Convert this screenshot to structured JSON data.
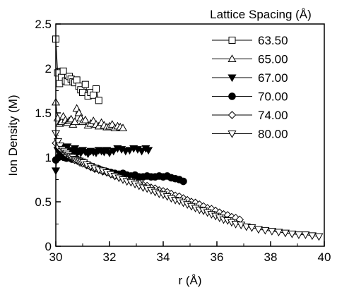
{
  "chart_data": {
    "type": "scatter",
    "xlabel": "r (Å)",
    "ylabel": "Ion Density (M)",
    "xlim": [
      30,
      40
    ],
    "ylim": [
      0,
      2.5
    ],
    "x_ticks": [
      "30",
      "32",
      "34",
      "36",
      "38",
      "40"
    ],
    "y_ticks": [
      "0",
      "0.5",
      "1",
      "1.5",
      "2",
      "2.5"
    ],
    "legend_title": "Lattice Spacing (Å)",
    "legend_position": "top-right",
    "grid": false,
    "series": [
      {
        "name": "63.50",
        "marker": "square",
        "filled": false,
        "line": true,
        "x": [
          30.0,
          30.07,
          30.14,
          30.21,
          30.28,
          30.36,
          30.43,
          30.5,
          30.57,
          30.64,
          30.71,
          30.78,
          30.86,
          30.93,
          31.0,
          31.1,
          31.2,
          31.3,
          31.4,
          31.5,
          31.6
        ],
        "y": [
          2.33,
          1.95,
          1.83,
          1.9,
          1.97,
          1.86,
          1.85,
          1.91,
          1.88,
          1.85,
          1.84,
          1.87,
          1.8,
          1.76,
          1.73,
          1.82,
          1.69,
          1.73,
          1.7,
          1.77,
          1.64
        ]
      },
      {
        "name": "65.00",
        "marker": "triangle-up",
        "filled": false,
        "line": true,
        "x": [
          30.0,
          30.07,
          30.14,
          30.21,
          30.28,
          30.36,
          30.43,
          30.5,
          30.57,
          30.64,
          30.71,
          30.78,
          30.86,
          30.93,
          31.0,
          31.1,
          31.2,
          31.3,
          31.4,
          31.5,
          31.6,
          31.7,
          31.8,
          31.9,
          32.0,
          32.1,
          32.2,
          32.3,
          32.4,
          32.5
        ],
        "y": [
          1.62,
          1.44,
          1.38,
          1.4,
          1.46,
          1.42,
          1.39,
          1.41,
          1.43,
          1.37,
          1.4,
          1.55,
          1.5,
          1.44,
          1.4,
          1.42,
          1.36,
          1.38,
          1.41,
          1.37,
          1.35,
          1.39,
          1.36,
          1.34,
          1.35,
          1.37,
          1.33,
          1.35,
          1.34,
          1.33
        ]
      },
      {
        "name": "67.00",
        "marker": "triangle-down",
        "filled": true,
        "line": true,
        "x": [
          30.0,
          30.07,
          30.14,
          30.21,
          30.28,
          30.36,
          30.43,
          30.5,
          30.57,
          30.64,
          30.71,
          30.78,
          30.86,
          30.93,
          31.0,
          31.1,
          31.2,
          31.3,
          31.4,
          31.5,
          31.6,
          31.7,
          31.8,
          31.9,
          32.0,
          32.15,
          32.3,
          32.45,
          32.6,
          32.75,
          32.9,
          33.05,
          33.2,
          33.35,
          33.45
        ],
        "y": [
          0.85,
          1.08,
          1.09,
          1.06,
          1.11,
          1.07,
          1.12,
          1.05,
          1.08,
          1.06,
          1.1,
          1.04,
          1.07,
          1.05,
          1.08,
          1.06,
          1.04,
          1.07,
          1.06,
          1.05,
          1.08,
          1.07,
          1.06,
          1.08,
          1.05,
          1.07,
          1.1,
          1.09,
          1.07,
          1.08,
          1.1,
          1.09,
          1.07,
          1.1,
          1.08
        ]
      },
      {
        "name": "70.00",
        "marker": "circle",
        "filled": true,
        "line": true,
        "x": [
          30.0,
          30.1,
          30.2,
          30.3,
          30.4,
          30.5,
          30.6,
          30.7,
          30.8,
          30.9,
          31.0,
          31.15,
          31.3,
          31.45,
          31.6,
          31.75,
          31.9,
          32.05,
          32.2,
          32.35,
          32.5,
          32.65,
          32.8,
          32.95,
          33.1,
          33.25,
          33.4,
          33.55,
          33.7,
          33.85,
          34.0,
          34.15,
          34.3,
          34.45,
          34.6,
          34.75
        ],
        "y": [
          0.97,
          1.0,
          1.02,
          1.0,
          0.99,
          1.01,
          0.98,
          0.99,
          0.97,
          0.96,
          0.94,
          0.92,
          0.9,
          0.88,
          0.87,
          0.85,
          0.84,
          0.83,
          0.82,
          0.81,
          0.82,
          0.8,
          0.79,
          0.8,
          0.78,
          0.78,
          0.79,
          0.78,
          0.78,
          0.79,
          0.78,
          0.79,
          0.77,
          0.76,
          0.75,
          0.73
        ]
      },
      {
        "name": "74.00",
        "marker": "diamond",
        "filled": false,
        "line": true,
        "x": [
          30.0,
          30.1,
          30.2,
          30.3,
          30.4,
          30.5,
          30.6,
          30.7,
          30.8,
          30.9,
          31.0,
          31.15,
          31.3,
          31.45,
          31.6,
          31.75,
          31.9,
          32.05,
          32.2,
          32.35,
          32.5,
          32.65,
          32.8,
          32.95,
          33.1,
          33.25,
          33.4,
          33.55,
          33.7,
          33.85,
          34.0,
          34.15,
          34.3,
          34.45,
          34.6,
          34.75,
          34.9,
          35.05,
          35.2,
          35.35,
          35.5,
          35.65,
          35.8,
          35.95,
          36.1,
          36.25,
          36.4,
          36.55,
          36.7,
          36.85
        ],
        "y": [
          1.16,
          1.12,
          1.09,
          1.06,
          1.03,
          1.01,
          0.99,
          0.97,
          0.96,
          0.94,
          0.93,
          0.91,
          0.89,
          0.87,
          0.86,
          0.84,
          0.83,
          0.81,
          0.79,
          0.78,
          0.76,
          0.75,
          0.74,
          0.72,
          0.71,
          0.69,
          0.68,
          0.66,
          0.65,
          0.63,
          0.62,
          0.61,
          0.59,
          0.57,
          0.56,
          0.54,
          0.52,
          0.5,
          0.49,
          0.47,
          0.45,
          0.43,
          0.42,
          0.4,
          0.38,
          0.36,
          0.35,
          0.33,
          0.32,
          0.3
        ]
      },
      {
        "name": "80.00",
        "marker": "triangle-down",
        "filled": false,
        "line": true,
        "x": [
          30.0,
          30.08,
          30.16,
          30.24,
          30.32,
          30.4,
          30.48,
          30.56,
          30.64,
          30.72,
          30.8,
          30.88,
          30.96,
          31.04,
          31.15,
          31.3,
          31.45,
          31.6,
          31.75,
          31.9,
          32.05,
          32.2,
          32.35,
          32.5,
          32.65,
          32.8,
          32.95,
          33.1,
          33.25,
          33.4,
          33.55,
          33.7,
          33.85,
          34.0,
          34.15,
          34.3,
          34.45,
          34.6,
          34.75,
          34.9,
          35.05,
          35.2,
          35.35,
          35.5,
          35.65,
          35.8,
          35.95,
          36.1,
          36.25,
          36.4,
          36.55,
          36.7,
          36.9,
          37.1,
          37.3,
          37.55,
          37.8,
          38.05,
          38.3,
          38.55,
          38.8,
          39.05,
          39.3,
          39.55,
          39.8
        ],
        "y": [
          1.27,
          1.18,
          1.13,
          1.09,
          1.07,
          1.05,
          1.03,
          1.01,
          1.0,
          0.98,
          0.97,
          0.96,
          0.95,
          0.94,
          0.92,
          0.9,
          0.88,
          0.86,
          0.85,
          0.83,
          0.81,
          0.79,
          0.77,
          0.75,
          0.73,
          0.72,
          0.7,
          0.68,
          0.66,
          0.65,
          0.63,
          0.61,
          0.59,
          0.58,
          0.56,
          0.54,
          0.52,
          0.51,
          0.49,
          0.47,
          0.45,
          0.43,
          0.41,
          0.4,
          0.38,
          0.36,
          0.34,
          0.32,
          0.3,
          0.29,
          0.27,
          0.25,
          0.24,
          0.22,
          0.21,
          0.19,
          0.18,
          0.17,
          0.16,
          0.15,
          0.14,
          0.13,
          0.13,
          0.12,
          0.11
        ]
      }
    ]
  }
}
